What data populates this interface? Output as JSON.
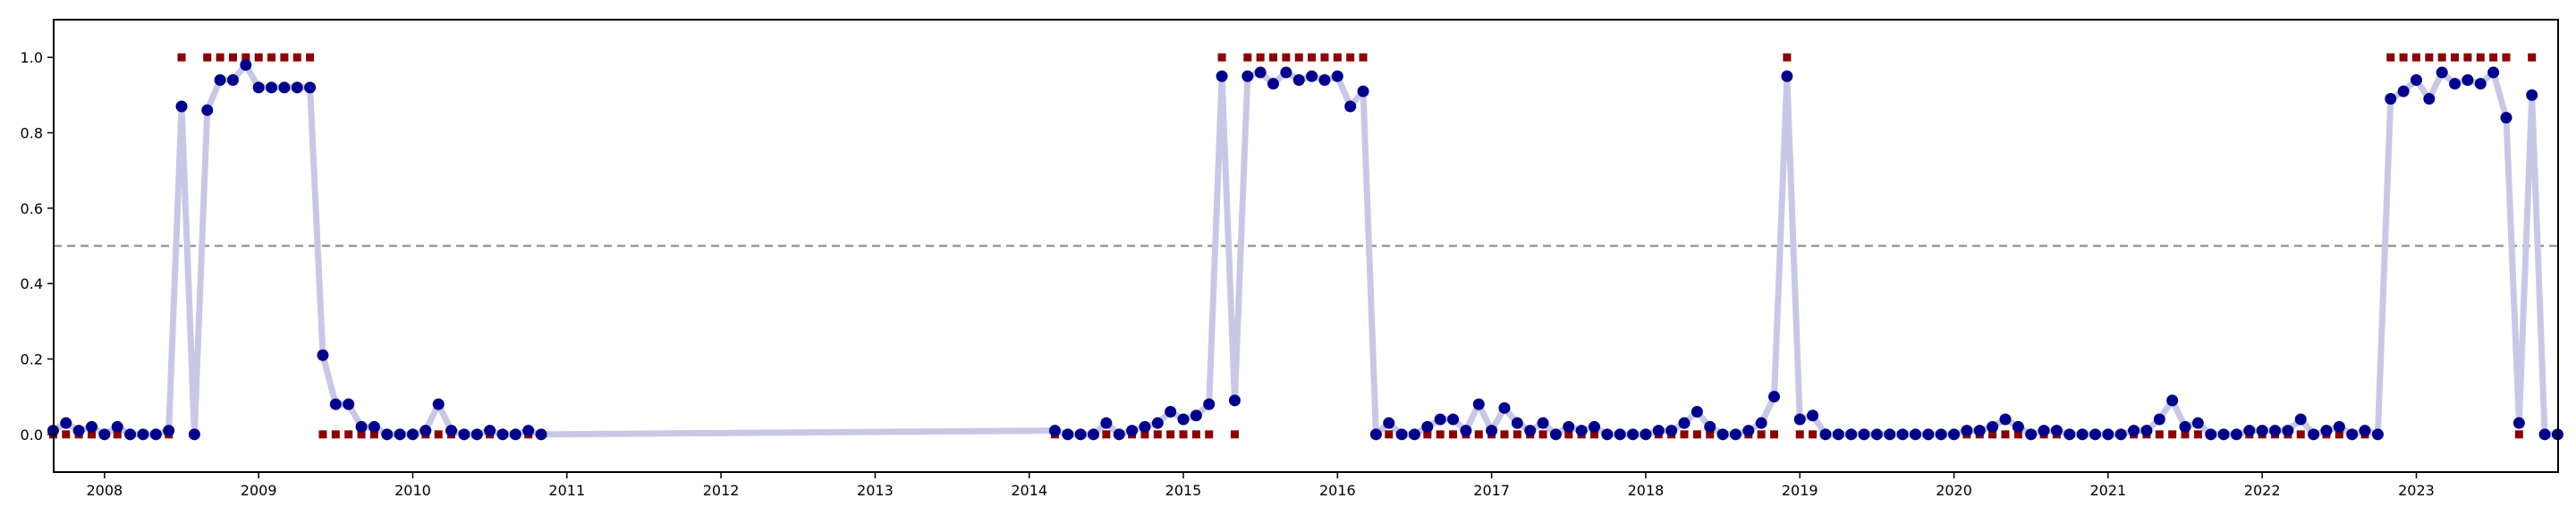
{
  "chart_data": {
    "type": "line",
    "title": "",
    "xlabel": "",
    "ylabel": "",
    "xlim": [
      2007.67,
      2023.92
    ],
    "ylim": [
      -0.1,
      1.1
    ],
    "x_ticks": [
      "2008",
      "2009",
      "2010",
      "2011",
      "2012",
      "2013",
      "2014",
      "2015",
      "2016",
      "2017",
      "2018",
      "2019",
      "2020",
      "2021",
      "2022",
      "2023"
    ],
    "y_ticks": [
      "0.0",
      "0.2",
      "0.4",
      "0.6",
      "0.8",
      "1.0"
    ],
    "grid": false,
    "threshold": 0.5,
    "colors": {
      "line": "#c8c8e6",
      "point": "#00008b",
      "label": "#8b0000",
      "threshold": "#999999"
    },
    "series": [
      {
        "points": [
          [
            "2007-09",
            0.01
          ],
          [
            "2007-10",
            0.03
          ],
          [
            "2007-11",
            0.01
          ],
          [
            "2007-12",
            0.02
          ],
          [
            "2008-01",
            0.0
          ],
          [
            "2008-02",
            0.02
          ],
          [
            "2008-03",
            0.0
          ],
          [
            "2008-04",
            0.0
          ],
          [
            "2008-05",
            0.0
          ],
          [
            "2008-06",
            0.01
          ],
          [
            "2008-07",
            0.87
          ],
          [
            "2008-08",
            0.0
          ],
          [
            "2008-09",
            0.86
          ],
          [
            "2008-10",
            0.94
          ],
          [
            "2008-11",
            0.94
          ],
          [
            "2008-12",
            0.98
          ],
          [
            "2009-01",
            0.92
          ],
          [
            "2009-02",
            0.92
          ],
          [
            "2009-03",
            0.92
          ],
          [
            "2009-04",
            0.92
          ],
          [
            "2009-05",
            0.92
          ],
          [
            "2009-06",
            0.21
          ],
          [
            "2009-07",
            0.08
          ],
          [
            "2009-08",
            0.08
          ],
          [
            "2009-09",
            0.02
          ],
          [
            "2009-10",
            0.02
          ],
          [
            "2009-11",
            0.0
          ],
          [
            "2009-12",
            0.0
          ],
          [
            "2010-01",
            0.0
          ],
          [
            "2010-02",
            0.01
          ],
          [
            "2010-03",
            0.08
          ],
          [
            "2010-04",
            0.01
          ],
          [
            "2010-05",
            0.0
          ],
          [
            "2010-06",
            0.0
          ],
          [
            "2010-07",
            0.01
          ],
          [
            "2010-08",
            0.0
          ],
          [
            "2010-09",
            0.0
          ],
          [
            "2010-10",
            0.01
          ],
          [
            "2010-11",
            0.0
          ],
          [
            "2014-03",
            0.01
          ],
          [
            "2014-04",
            0.0
          ],
          [
            "2014-05",
            0.0
          ],
          [
            "2014-06",
            0.0
          ],
          [
            "2014-07",
            0.03
          ],
          [
            "2014-08",
            0.0
          ],
          [
            "2014-09",
            0.01
          ],
          [
            "2014-10",
            0.02
          ],
          [
            "2014-11",
            0.03
          ],
          [
            "2014-12",
            0.06
          ],
          [
            "2015-01",
            0.04
          ],
          [
            "2015-02",
            0.05
          ],
          [
            "2015-03",
            0.08
          ],
          [
            "2015-04",
            0.95
          ],
          [
            "2015-05",
            0.09
          ],
          [
            "2015-06",
            0.95
          ],
          [
            "2015-07",
            0.96
          ],
          [
            "2015-08",
            0.93
          ],
          [
            "2015-09",
            0.96
          ],
          [
            "2015-10",
            0.94
          ],
          [
            "2015-11",
            0.95
          ],
          [
            "2015-12",
            0.94
          ],
          [
            "2016-01",
            0.95
          ],
          [
            "2016-02",
            0.87
          ],
          [
            "2016-03",
            0.91
          ],
          [
            "2016-04",
            0.0
          ],
          [
            "2016-05",
            0.03
          ],
          [
            "2016-06",
            0.0
          ],
          [
            "2016-07",
            0.0
          ],
          [
            "2016-08",
            0.02
          ],
          [
            "2016-09",
            0.04
          ],
          [
            "2016-10",
            0.04
          ],
          [
            "2016-11",
            0.01
          ],
          [
            "2016-12",
            0.08
          ],
          [
            "2017-01",
            0.01
          ],
          [
            "2017-02",
            0.07
          ],
          [
            "2017-03",
            0.03
          ],
          [
            "2017-04",
            0.01
          ],
          [
            "2017-05",
            0.03
          ],
          [
            "2017-06",
            0.0
          ],
          [
            "2017-07",
            0.02
          ],
          [
            "2017-08",
            0.01
          ],
          [
            "2017-09",
            0.02
          ],
          [
            "2017-10",
            0.0
          ],
          [
            "2017-11",
            0.0
          ],
          [
            "2017-12",
            0.0
          ],
          [
            "2018-01",
            0.0
          ],
          [
            "2018-02",
            0.01
          ],
          [
            "2018-03",
            0.01
          ],
          [
            "2018-04",
            0.03
          ],
          [
            "2018-05",
            0.06
          ],
          [
            "2018-06",
            0.02
          ],
          [
            "2018-07",
            0.0
          ],
          [
            "2018-08",
            0.0
          ],
          [
            "2018-09",
            0.01
          ],
          [
            "2018-10",
            0.03
          ],
          [
            "2018-11",
            0.1
          ],
          [
            "2018-12",
            0.95
          ],
          [
            "2019-01",
            0.04
          ],
          [
            "2019-02",
            0.05
          ],
          [
            "2019-03",
            0.0
          ],
          [
            "2019-04",
            0.0
          ],
          [
            "2019-05",
            0.0
          ],
          [
            "2019-06",
            0.0
          ],
          [
            "2019-07",
            0.0
          ],
          [
            "2019-08",
            0.0
          ],
          [
            "2019-09",
            0.0
          ],
          [
            "2019-10",
            0.0
          ],
          [
            "2019-11",
            0.0
          ],
          [
            "2019-12",
            0.0
          ],
          [
            "2020-01",
            0.0
          ],
          [
            "2020-02",
            0.01
          ],
          [
            "2020-03",
            0.01
          ],
          [
            "2020-04",
            0.02
          ],
          [
            "2020-05",
            0.04
          ],
          [
            "2020-06",
            0.02
          ],
          [
            "2020-07",
            0.0
          ],
          [
            "2020-08",
            0.01
          ],
          [
            "2020-09",
            0.01
          ],
          [
            "2020-10",
            0.0
          ],
          [
            "2020-11",
            0.0
          ],
          [
            "2020-12",
            0.0
          ],
          [
            "2021-01",
            0.0
          ],
          [
            "2021-02",
            0.0
          ],
          [
            "2021-03",
            0.01
          ],
          [
            "2021-04",
            0.01
          ],
          [
            "2021-05",
            0.04
          ],
          [
            "2021-06",
            0.09
          ],
          [
            "2021-07",
            0.02
          ],
          [
            "2021-08",
            0.03
          ],
          [
            "2021-09",
            0.0
          ],
          [
            "2021-10",
            0.0
          ],
          [
            "2021-11",
            0.0
          ],
          [
            "2021-12",
            0.01
          ],
          [
            "2022-01",
            0.01
          ],
          [
            "2022-02",
            0.01
          ],
          [
            "2022-03",
            0.01
          ],
          [
            "2022-04",
            0.04
          ],
          [
            "2022-05",
            0.0
          ],
          [
            "2022-06",
            0.01
          ],
          [
            "2022-07",
            0.02
          ],
          [
            "2022-08",
            0.0
          ],
          [
            "2022-09",
            0.01
          ],
          [
            "2022-10",
            0.0
          ],
          [
            "2022-11",
            0.89
          ],
          [
            "2022-12",
            0.91
          ],
          [
            "2023-01",
            0.94
          ],
          [
            "2023-02",
            0.89
          ],
          [
            "2023-03",
            0.96
          ],
          [
            "2023-04",
            0.93
          ],
          [
            "2023-05",
            0.94
          ],
          [
            "2023-06",
            0.93
          ],
          [
            "2023-07",
            0.96
          ],
          [
            "2023-08",
            0.84
          ],
          [
            "2023-09",
            0.03
          ],
          [
            "2023-10",
            0.9
          ],
          [
            "2023-11",
            0.0
          ],
          [
            "2023-12",
            0.0
          ]
        ]
      }
    ],
    "labels": [
      [
        "2007-09",
        0
      ],
      [
        "2007-10",
        0
      ],
      [
        "2007-11",
        0
      ],
      [
        "2007-12",
        0
      ],
      [
        "2008-01",
        0
      ],
      [
        "2008-02",
        0
      ],
      [
        "2008-03",
        0
      ],
      [
        "2008-04",
        0
      ],
      [
        "2008-05",
        0
      ],
      [
        "2008-06",
        0
      ],
      [
        "2008-07",
        1
      ],
      [
        "2008-08",
        0
      ],
      [
        "2008-09",
        1
      ],
      [
        "2008-10",
        1
      ],
      [
        "2008-11",
        1
      ],
      [
        "2008-12",
        1
      ],
      [
        "2009-01",
        1
      ],
      [
        "2009-02",
        1
      ],
      [
        "2009-03",
        1
      ],
      [
        "2009-04",
        1
      ],
      [
        "2009-05",
        1
      ],
      [
        "2009-06",
        0
      ],
      [
        "2009-07",
        0
      ],
      [
        "2009-08",
        0
      ],
      [
        "2009-09",
        0
      ],
      [
        "2009-10",
        0
      ],
      [
        "2009-11",
        0
      ],
      [
        "2009-12",
        0
      ],
      [
        "2010-01",
        0
      ],
      [
        "2010-02",
        0
      ],
      [
        "2010-03",
        0
      ],
      [
        "2010-04",
        0
      ],
      [
        "2010-05",
        0
      ],
      [
        "2010-06",
        0
      ],
      [
        "2010-07",
        0
      ],
      [
        "2010-08",
        0
      ],
      [
        "2010-09",
        0
      ],
      [
        "2010-10",
        0
      ],
      [
        "2010-11",
        0
      ],
      [
        "2014-03",
        0
      ],
      [
        "2014-04",
        0
      ],
      [
        "2014-05",
        0
      ],
      [
        "2014-06",
        0
      ],
      [
        "2014-07",
        0
      ],
      [
        "2014-08",
        0
      ],
      [
        "2014-09",
        0
      ],
      [
        "2014-10",
        0
      ],
      [
        "2014-11",
        0
      ],
      [
        "2014-12",
        0
      ],
      [
        "2015-01",
        0
      ],
      [
        "2015-02",
        0
      ],
      [
        "2015-03",
        0
      ],
      [
        "2015-04",
        1
      ],
      [
        "2015-05",
        0
      ],
      [
        "2015-06",
        1
      ],
      [
        "2015-07",
        1
      ],
      [
        "2015-08",
        1
      ],
      [
        "2015-09",
        1
      ],
      [
        "2015-10",
        1
      ],
      [
        "2015-11",
        1
      ],
      [
        "2015-12",
        1
      ],
      [
        "2016-01",
        1
      ],
      [
        "2016-02",
        1
      ],
      [
        "2016-03",
        1
      ],
      [
        "2016-04",
        0
      ],
      [
        "2016-05",
        0
      ],
      [
        "2016-06",
        0
      ],
      [
        "2016-07",
        0
      ],
      [
        "2016-08",
        0
      ],
      [
        "2016-09",
        0
      ],
      [
        "2016-10",
        0
      ],
      [
        "2016-11",
        0
      ],
      [
        "2016-12",
        0
      ],
      [
        "2017-01",
        0
      ],
      [
        "2017-02",
        0
      ],
      [
        "2017-03",
        0
      ],
      [
        "2017-04",
        0
      ],
      [
        "2017-05",
        0
      ],
      [
        "2017-06",
        0
      ],
      [
        "2017-07",
        0
      ],
      [
        "2017-08",
        0
      ],
      [
        "2017-09",
        0
      ],
      [
        "2017-10",
        0
      ],
      [
        "2017-11",
        0
      ],
      [
        "2017-12",
        0
      ],
      [
        "2018-01",
        0
      ],
      [
        "2018-02",
        0
      ],
      [
        "2018-03",
        0
      ],
      [
        "2018-04",
        0
      ],
      [
        "2018-05",
        0
      ],
      [
        "2018-06",
        0
      ],
      [
        "2018-07",
        0
      ],
      [
        "2018-08",
        0
      ],
      [
        "2018-09",
        0
      ],
      [
        "2018-10",
        0
      ],
      [
        "2018-11",
        0
      ],
      [
        "2018-12",
        1
      ],
      [
        "2019-01",
        0
      ],
      [
        "2019-02",
        0
      ],
      [
        "2019-03",
        0
      ],
      [
        "2019-04",
        0
      ],
      [
        "2019-05",
        0
      ],
      [
        "2019-06",
        0
      ],
      [
        "2019-07",
        0
      ],
      [
        "2019-08",
        0
      ],
      [
        "2019-09",
        0
      ],
      [
        "2019-10",
        0
      ],
      [
        "2019-11",
        0
      ],
      [
        "2019-12",
        0
      ],
      [
        "2020-01",
        0
      ],
      [
        "2020-02",
        0
      ],
      [
        "2020-03",
        0
      ],
      [
        "2020-04",
        0
      ],
      [
        "2020-05",
        0
      ],
      [
        "2020-06",
        0
      ],
      [
        "2020-07",
        0
      ],
      [
        "2020-08",
        0
      ],
      [
        "2020-09",
        0
      ],
      [
        "2020-10",
        0
      ],
      [
        "2020-11",
        0
      ],
      [
        "2020-12",
        0
      ],
      [
        "2021-01",
        0
      ],
      [
        "2021-02",
        0
      ],
      [
        "2021-03",
        0
      ],
      [
        "2021-04",
        0
      ],
      [
        "2021-05",
        0
      ],
      [
        "2021-06",
        0
      ],
      [
        "2021-07",
        0
      ],
      [
        "2021-08",
        0
      ],
      [
        "2021-09",
        0
      ],
      [
        "2021-10",
        0
      ],
      [
        "2021-11",
        0
      ],
      [
        "2021-12",
        0
      ],
      [
        "2022-01",
        0
      ],
      [
        "2022-02",
        0
      ],
      [
        "2022-03",
        0
      ],
      [
        "2022-04",
        0
      ],
      [
        "2022-05",
        0
      ],
      [
        "2022-06",
        0
      ],
      [
        "2022-07",
        0
      ],
      [
        "2022-08",
        0
      ],
      [
        "2022-09",
        0
      ],
      [
        "2022-10",
        0
      ],
      [
        "2022-11",
        1
      ],
      [
        "2022-12",
        1
      ],
      [
        "2023-01",
        1
      ],
      [
        "2023-02",
        1
      ],
      [
        "2023-03",
        1
      ],
      [
        "2023-04",
        1
      ],
      [
        "2023-05",
        1
      ],
      [
        "2023-06",
        1
      ],
      [
        "2023-07",
        1
      ],
      [
        "2023-08",
        1
      ],
      [
        "2023-09",
        0
      ],
      [
        "2023-10",
        1
      ],
      [
        "2023-11",
        0
      ],
      [
        "2023-12",
        0
      ]
    ]
  }
}
